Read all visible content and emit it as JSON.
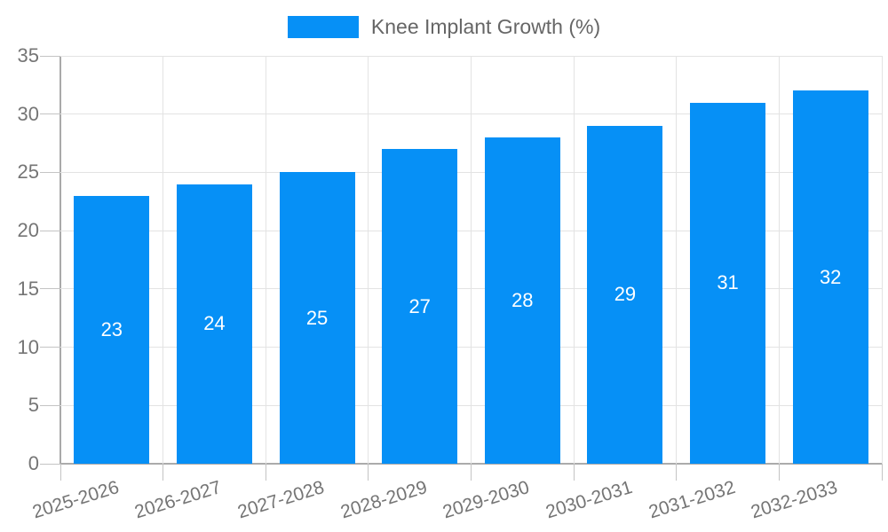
{
  "chart_data": {
    "type": "bar",
    "legend": {
      "label": "Knee Implant Growth (%)",
      "position": "top"
    },
    "categories": [
      "2025-2026",
      "2026-2027",
      "2027-2028",
      "2028-2029",
      "2029-2030",
      "2030-2031",
      "2031-2032",
      "2032-2033"
    ],
    "values": [
      23,
      24,
      25,
      27,
      28,
      29,
      31,
      32
    ],
    "bar_labels": [
      "23",
      "24",
      "25",
      "27",
      "28",
      "29",
      "31",
      "32"
    ],
    "ylim": [
      0,
      35
    ],
    "yticks": [
      0,
      5,
      10,
      15,
      20,
      25,
      30,
      35
    ],
    "grid": true,
    "x_label_rotation_deg": -17,
    "colors": {
      "bar": "#0690f6",
      "bar_label": "#ffffff",
      "axis_text": "#757575",
      "legend_text": "#666666",
      "gridline": "#e3e3e3"
    }
  }
}
